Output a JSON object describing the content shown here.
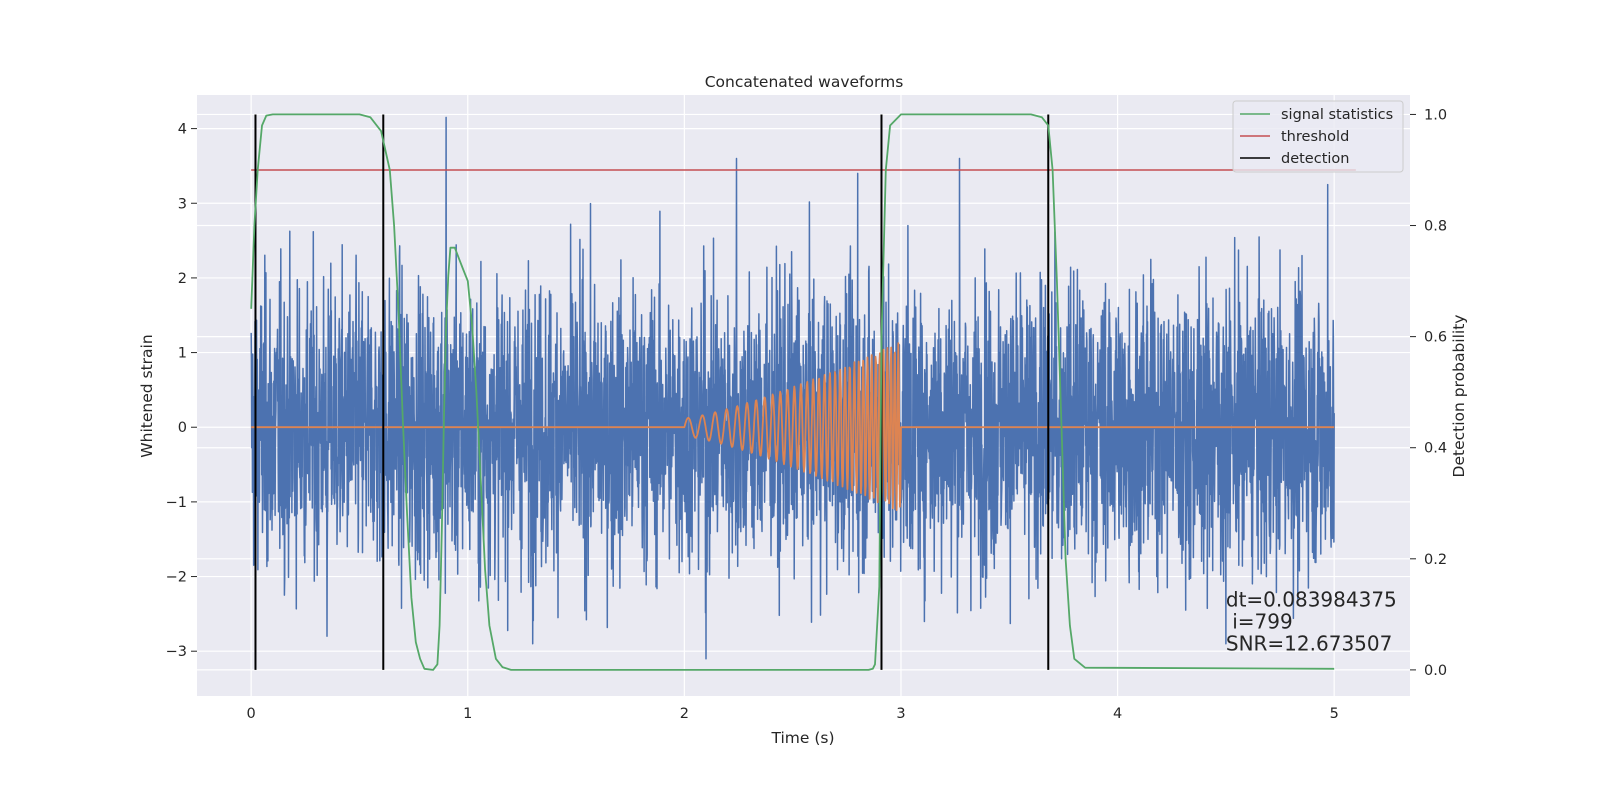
{
  "chart_data": {
    "type": "line",
    "title": "Concatenated waveforms",
    "xlabel": "Time (s)",
    "ylabel": "Whitened strain",
    "y2label": "Detection probability",
    "xlim": [
      -0.25,
      5.35
    ],
    "ylim": [
      -3.6,
      4.45
    ],
    "y2lim": [
      -0.047,
      1.035
    ],
    "xticks": [
      0,
      1,
      2,
      3,
      4,
      5
    ],
    "yticks": [
      -3,
      -2,
      -1,
      0,
      1,
      2,
      3,
      4
    ],
    "y2ticks": [
      "0.0",
      "0.2",
      "0.4",
      "0.6",
      "0.8",
      "1.0"
    ],
    "grid": true,
    "legend": {
      "position": "top-right",
      "entries": [
        {
          "label": "signal statistics",
          "color": "#55a868"
        },
        {
          "label": "threshold",
          "color": "#c44e52"
        },
        {
          "label": "detection",
          "color": "#000000"
        }
      ]
    },
    "series": [
      {
        "name": "",
        "kind": "noise",
        "color": "#4c72b0",
        "x_range": [
          0,
          5
        ],
        "envelope": [
          -3.1,
          4.15
        ],
        "spikes": [
          {
            "x": 0.9,
            "y": 4.15
          },
          {
            "x": 2.24,
            "y": 3.6
          },
          {
            "x": 2.8,
            "y": 3.4
          },
          {
            "x": 3.27,
            "y": 3.6
          },
          {
            "x": 4.97,
            "y": 3.25
          },
          {
            "x": 0.35,
            "y": -2.8
          },
          {
            "x": 2.1,
            "y": -3.1
          },
          {
            "x": 1.3,
            "y": -2.9
          },
          {
            "x": 4.5,
            "y": -2.9
          }
        ]
      },
      {
        "name": "",
        "kind": "chirp",
        "color": "#dd8452",
        "x_range": [
          0,
          5
        ],
        "chirp_start": 2.0,
        "chirp_end": 3.0,
        "amp_start": 0.12,
        "amp_end": 1.15
      },
      {
        "name": "signal statistics",
        "axis": "right",
        "color": "#55a868",
        "x": [
          0.0,
          0.015,
          0.03,
          0.05,
          0.07,
          0.1,
          0.5,
          0.55,
          0.6,
          0.64,
          0.66,
          0.68,
          0.7,
          0.72,
          0.74,
          0.76,
          0.78,
          0.8,
          0.84,
          0.86,
          0.87,
          0.88,
          0.89,
          0.9,
          0.91,
          0.92,
          0.94,
          0.96,
          0.98,
          1.0,
          1.02,
          1.04,
          1.06,
          1.08,
          1.1,
          1.13,
          1.16,
          1.2,
          2.85,
          2.87,
          2.88,
          2.9,
          2.91,
          2.93,
          2.95,
          3.0,
          3.6,
          3.65,
          3.68,
          3.7,
          3.72,
          3.74,
          3.76,
          3.78,
          3.8,
          3.85,
          5.0
        ],
        "y": [
          0.65,
          0.8,
          0.9,
          0.98,
          0.998,
          1.0,
          1.0,
          0.995,
          0.97,
          0.9,
          0.8,
          0.65,
          0.45,
          0.28,
          0.13,
          0.05,
          0.02,
          0.002,
          0.0,
          0.01,
          0.08,
          0.25,
          0.45,
          0.62,
          0.71,
          0.76,
          0.76,
          0.74,
          0.72,
          0.7,
          0.62,
          0.5,
          0.34,
          0.18,
          0.08,
          0.02,
          0.005,
          0.0,
          0.0,
          0.002,
          0.01,
          0.15,
          0.6,
          0.9,
          0.98,
          1.0,
          1.0,
          0.995,
          0.98,
          0.9,
          0.7,
          0.45,
          0.2,
          0.08,
          0.02,
          0.004,
          0.002
        ]
      },
      {
        "name": "threshold",
        "axis": "right",
        "color": "#c44e52",
        "x": [
          0,
          5.1
        ],
        "y": [
          0.9,
          0.9
        ]
      }
    ],
    "detections": [
      0.02,
      0.61,
      2.91,
      3.68
    ],
    "detection_range": [
      0.0,
      1.0
    ],
    "annotation": {
      "lines": [
        "dt=0.083984375",
        " i=799",
        "SNR=12.673507"
      ],
      "x": 4.5,
      "y": -2.4
    }
  }
}
